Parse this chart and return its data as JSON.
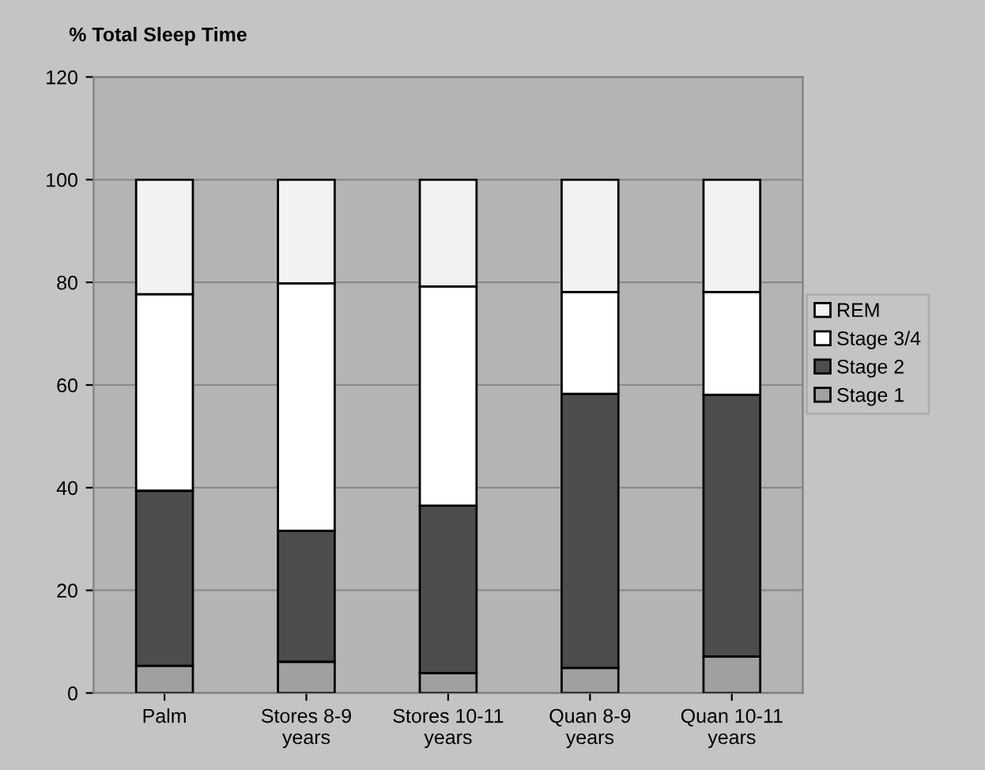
{
  "chart_data": {
    "type": "bar",
    "stacked": true,
    "title": "% Total Sleep Time",
    "categories": [
      "Palm",
      "Stores 8-9 years",
      "Stores 10-11 years",
      "Quan 8-9 years",
      "Quan 10-11 years"
    ],
    "series": [
      {
        "name": "Stage 1",
        "color": "#a0a0a0",
        "values": [
          5.3,
          6.1,
          3.9,
          4.9,
          7.1
        ]
      },
      {
        "name": "Stage 2",
        "color": "#4d4d4d",
        "values": [
          34.1,
          25.5,
          32.6,
          53.4,
          51.0
        ]
      },
      {
        "name": "Stage 3/4",
        "color": "#ffffff",
        "values": [
          38.3,
          48.2,
          42.7,
          19.8,
          20.0
        ]
      },
      {
        "name": "REM",
        "color": "#f2f2f2",
        "values": [
          22.3,
          20.2,
          20.8,
          21.9,
          21.9
        ]
      }
    ],
    "ylim": [
      0,
      120
    ],
    "yticks": [
      0,
      20,
      40,
      60,
      80,
      100,
      120
    ],
    "grid": "y",
    "legend": "right"
  }
}
